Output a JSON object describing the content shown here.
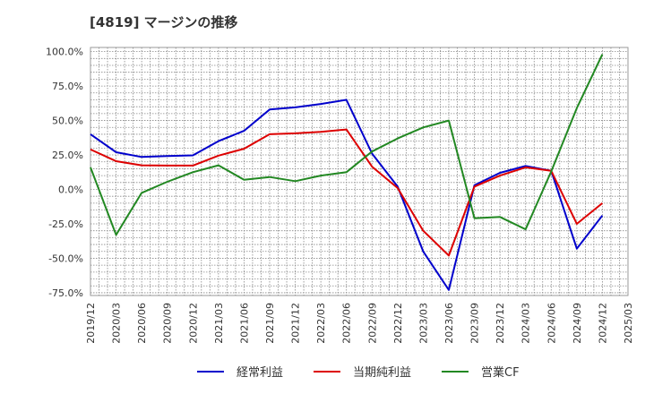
{
  "chart_data": {
    "type": "line",
    "title": "[4819]  マージンの推移",
    "xlabel": "",
    "ylabel": "",
    "ylim": [
      -77,
      103
    ],
    "y_ticks": [
      100,
      75,
      50,
      25,
      0,
      -25,
      -50,
      -75
    ],
    "y_tick_labels": [
      "100.0%",
      "75.0%",
      "50.0%",
      "25.0%",
      "0.0%",
      "-25.0%",
      "-50.0%",
      "-75.0%"
    ],
    "x_ticks": [
      "2019/12",
      "2020/03",
      "2020/06",
      "2020/09",
      "2020/12",
      "2021/03",
      "2021/06",
      "2021/09",
      "2021/12",
      "2022/03",
      "2022/06",
      "2022/09",
      "2022/12",
      "2023/03",
      "2023/06",
      "2023/09",
      "2023/12",
      "2024/03",
      "2024/06",
      "2024/09",
      "2024/12",
      "2025/03"
    ],
    "grid": true,
    "legend_position": "bottom",
    "series": [
      {
        "name": "経常利益",
        "color": "#0000cc",
        "points": [
          [
            "2019/12",
            40
          ],
          [
            "2020/03",
            27
          ],
          [
            "2020/06",
            23.5
          ],
          [
            "2020/09",
            24.2
          ],
          [
            "2020/12",
            24.7
          ],
          [
            "2021/03",
            35
          ],
          [
            "2021/06",
            42.5
          ],
          [
            "2021/09",
            58
          ],
          [
            "2021/12",
            59.5
          ],
          [
            "2022/03",
            62
          ],
          [
            "2022/06",
            65
          ],
          [
            "2022/09",
            26
          ],
          [
            "2022/12",
            2
          ],
          [
            "2023/03",
            -45
          ],
          [
            "2023/06",
            -73
          ],
          [
            "2023/09",
            3
          ],
          [
            "2023/12",
            12
          ],
          [
            "2024/03",
            17
          ],
          [
            "2024/06",
            13.5
          ],
          [
            "2024/09",
            -43
          ],
          [
            "2024/12",
            -19
          ]
        ]
      },
      {
        "name": "当期純利益",
        "color": "#dd0000",
        "points": [
          [
            "2019/12",
            29
          ],
          [
            "2020/03",
            20.5
          ],
          [
            "2020/06",
            17.5
          ],
          [
            "2020/09",
            17.3
          ],
          [
            "2020/12",
            17.3
          ],
          [
            "2021/03",
            24.5
          ],
          [
            "2021/06",
            29.5
          ],
          [
            "2021/09",
            40
          ],
          [
            "2021/12",
            40.7
          ],
          [
            "2022/03",
            41.8
          ],
          [
            "2022/06",
            43.5
          ],
          [
            "2022/09",
            16.5
          ],
          [
            "2022/12",
            1
          ],
          [
            "2023/03",
            -30
          ],
          [
            "2023/06",
            -48
          ],
          [
            "2023/09",
            2
          ],
          [
            "2023/12",
            10
          ],
          [
            "2024/03",
            16
          ],
          [
            "2024/06",
            13.5
          ],
          [
            "2024/09",
            -25
          ],
          [
            "2024/12",
            -10
          ]
        ]
      },
      {
        "name": "営業CF",
        "color": "#228822",
        "points": [
          [
            "2019/12",
            16
          ],
          [
            "2020/03",
            -33
          ],
          [
            "2020/06",
            -2.5
          ],
          [
            "2020/09",
            5.5
          ],
          [
            "2020/12",
            12.5
          ],
          [
            "2021/03",
            17.5
          ],
          [
            "2021/06",
            7
          ],
          [
            "2021/09",
            9
          ],
          [
            "2021/12",
            6
          ],
          [
            "2022/03",
            10
          ],
          [
            "2022/06",
            12.5
          ],
          [
            "2022/09",
            27.5
          ],
          [
            "2022/12",
            37
          ],
          [
            "2023/03",
            45
          ],
          [
            "2023/06",
            50
          ],
          [
            "2023/09",
            -21
          ],
          [
            "2023/12",
            -20
          ],
          [
            "2024/03",
            -29
          ],
          [
            "2024/06",
            13
          ],
          [
            "2024/09",
            59
          ],
          [
            "2024/12",
            98
          ]
        ]
      }
    ]
  }
}
